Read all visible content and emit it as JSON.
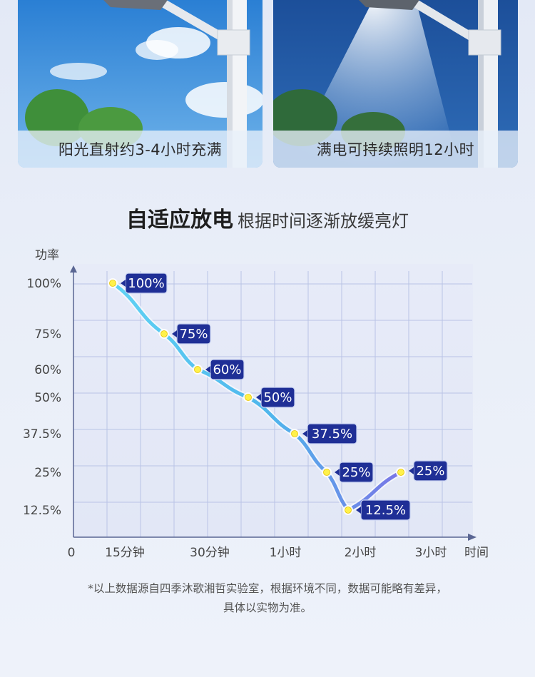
{
  "photos": [
    {
      "caption": "阳光直射约3-4小时充满"
    },
    {
      "caption": "满电可持续照明12小时"
    }
  ],
  "heading": {
    "bold": "自适应放电",
    "sub": "根据时间逐渐放缓亮灯"
  },
  "chart_data": {
    "type": "line",
    "ylabel": "功率",
    "xlabel": "时间",
    "origin_label": "0",
    "y_ticks": [
      {
        "label": "100%",
        "value": 100
      },
      {
        "label": "75%",
        "value": 75
      },
      {
        "label": "60%",
        "value": 60
      },
      {
        "label": "50%",
        "value": 50
      },
      {
        "label": "37.5%",
        "value": 37.5
      },
      {
        "label": "25%",
        "value": 25
      },
      {
        "label": "12.5%",
        "value": 12.5
      }
    ],
    "x_ticks": [
      {
        "label": "15分钟",
        "hours": 0.25
      },
      {
        "label": "30分钟",
        "hours": 0.5
      },
      {
        "label": "1小时",
        "hours": 1
      },
      {
        "label": "2小时",
        "hours": 2
      },
      {
        "label": "3小时",
        "hours": 3
      }
    ],
    "series": [
      {
        "points": [
          {
            "label": "100%",
            "y": 100
          },
          {
            "label": "75%",
            "y": 75
          },
          {
            "label": "60%",
            "y": 60
          },
          {
            "label": "50%",
            "y": 50
          },
          {
            "label": "37.5%",
            "y": 37.5
          },
          {
            "label": "25%",
            "y": 25
          },
          {
            "label": "12.5%",
            "y": 12.5
          },
          {
            "label": "25%",
            "y": 25
          }
        ]
      }
    ],
    "grid": true,
    "colors": {
      "line_start": "#5fd2f4",
      "line_end": "#7a76e6",
      "marker": "#fff14a",
      "label_bg": "#1f2f96",
      "grid": "#b9c3e6",
      "axis": "#5a6693"
    }
  },
  "footnote": {
    "line1": "*以上数据源自四季沐歌湘哲实验室，根据环境不同，数据可能略有差异，",
    "line2": "具体以实物为准。"
  }
}
